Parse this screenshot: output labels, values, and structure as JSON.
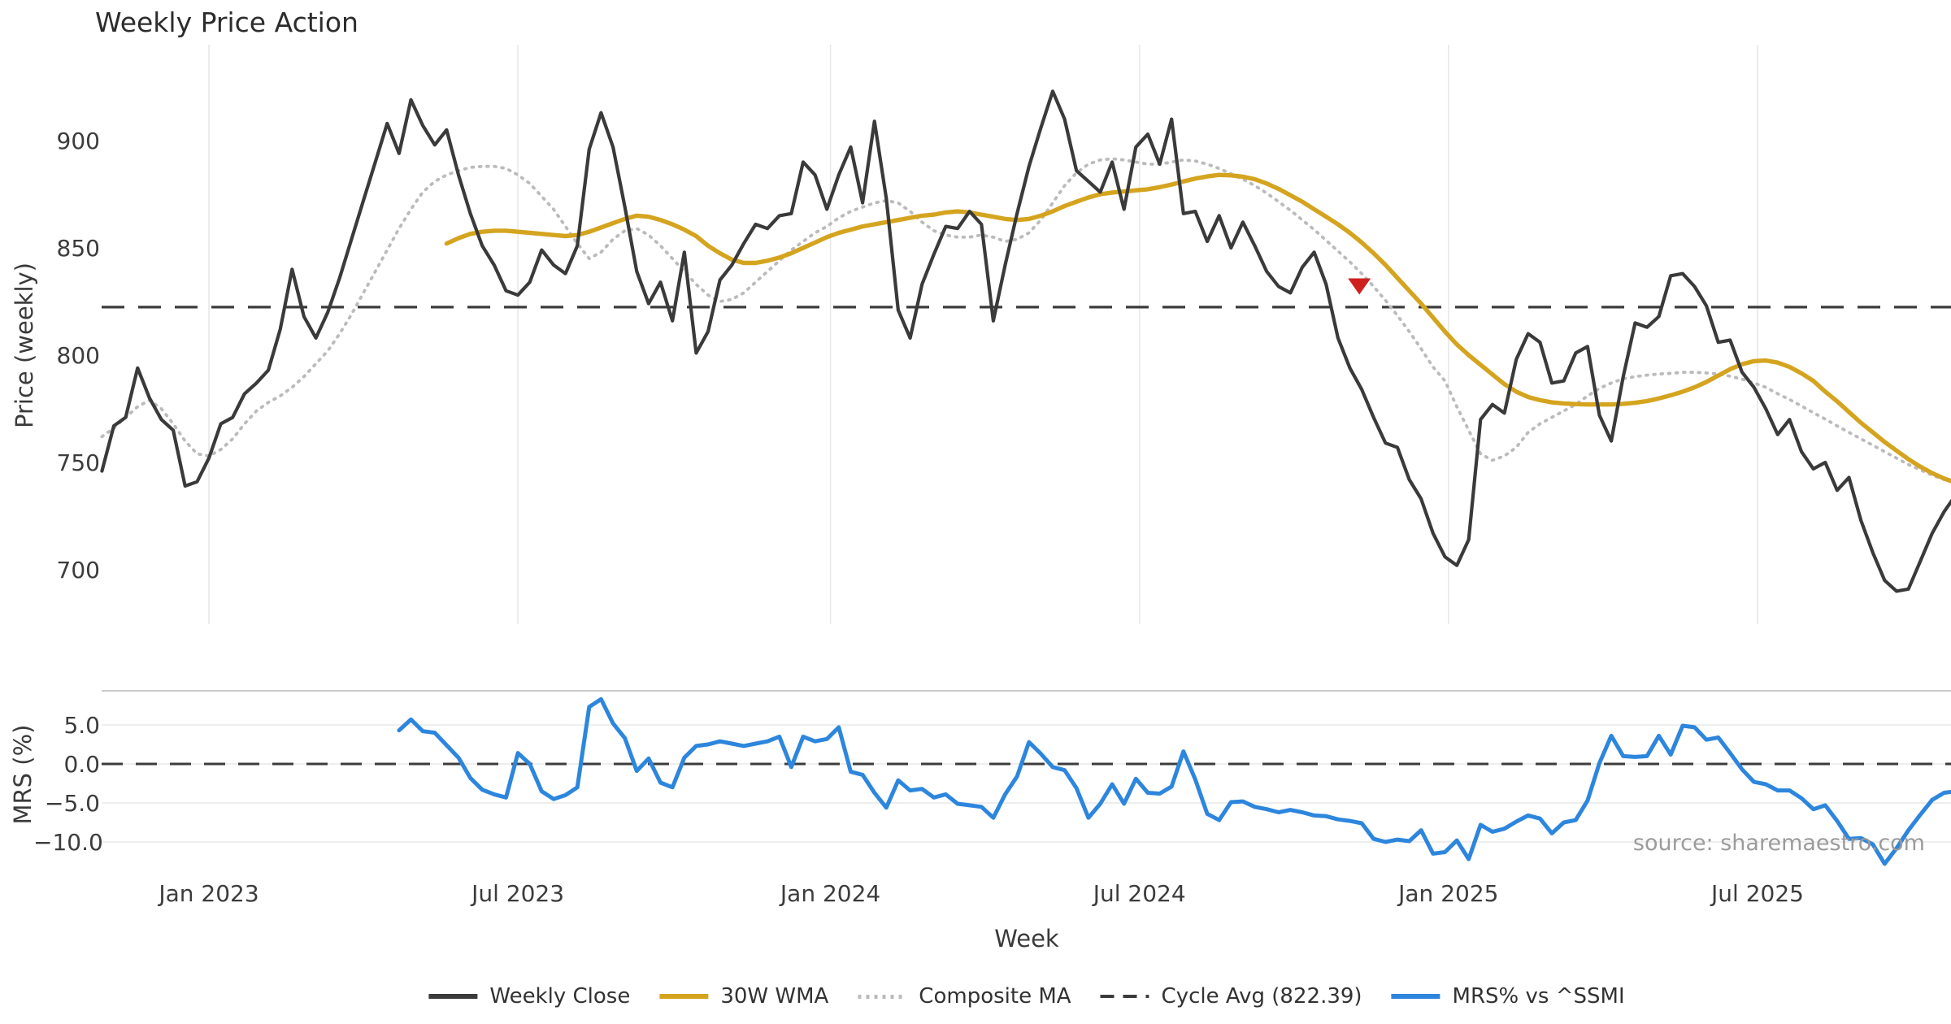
{
  "title": "Weekly Price Action",
  "source": "source: sharemaestro.com",
  "price_panel": {
    "ylabel": "Price (weekly)",
    "yticks": [
      {
        "value": 900,
        "label": "900"
      },
      {
        "value": 850,
        "label": "850"
      },
      {
        "value": 800,
        "label": "800"
      },
      {
        "value": 750,
        "label": "750"
      },
      {
        "value": 700,
        "label": "700"
      }
    ],
    "cycle_avg_value": 822.39
  },
  "mrs_panel": {
    "ylabel": "MRS (%)",
    "yticks": [
      {
        "value": 5,
        "label": "5.0"
      },
      {
        "value": 0,
        "label": "0.0"
      },
      {
        "value": -5,
        "label": "−5.0"
      },
      {
        "value": -10,
        "label": "−10.0"
      }
    ],
    "zero_line_value": 0.0
  },
  "xaxis": {
    "label": "Week",
    "ticks": [
      {
        "week": 9.0,
        "label": "Jan 2023"
      },
      {
        "week": 35.0,
        "label": "Jul 2023"
      },
      {
        "week": 61.3,
        "label": "Jan 2024"
      },
      {
        "week": 87.3,
        "label": "Jul 2024"
      },
      {
        "week": 113.3,
        "label": "Jan 2025"
      },
      {
        "week": 139.3,
        "label": "Jul 2025"
      }
    ]
  },
  "legend": [
    {
      "label": "Weekly Close",
      "color": "#3b3b3b",
      "style": "solid"
    },
    {
      "label": "30W WMA",
      "color": "#d5a41f",
      "style": "solid"
    },
    {
      "label": "Composite MA",
      "color": "#bbbbbb",
      "style": "dotted"
    },
    {
      "label": "Cycle Avg (822.39)",
      "color": "#3c3c3c",
      "style": "dashed"
    },
    {
      "label": "MRS% vs ^SSMI",
      "color": "#2d86dd",
      "style": "solid"
    }
  ],
  "colors": {
    "close": "#3a3a3a",
    "wma": "#d5a41f",
    "composite": "#bbbbbb",
    "dashed": "#3c3c3c",
    "mrs": "#2d86dd",
    "marker": "#cf2020",
    "grid": "#e8e8e8",
    "spine": "#c9c9c9"
  },
  "chart_data": [
    {
      "type": "line",
      "title": "Weekly Price Action",
      "xlabel": "Week",
      "ylabel": "Price (weekly)",
      "ylim": [
        660,
        950
      ],
      "grid": "vertical-only",
      "legend_position": "bottom-center",
      "x_unit": "week_index (week 9 = Jan 2023, ~26 weeks per half year)",
      "cycle_avg": 822.39,
      "annotations": [
        {
          "shape": "triangle-down",
          "week": 105.8,
          "value": 832,
          "color": "#cf2020",
          "meaning": "sell/cross signal"
        }
      ],
      "series": [
        {
          "name": "Weekly Close",
          "color": "#3a3a3a",
          "style": "solid",
          "width": 4.2,
          "start_week": 0,
          "values": [
            746,
            767,
            771,
            794,
            780,
            770,
            765,
            739,
            741,
            752,
            768,
            771,
            782,
            787,
            793,
            812,
            840,
            818,
            808,
            820,
            836,
            854,
            872,
            890,
            908,
            894,
            919,
            907,
            898,
            905,
            884,
            866,
            851,
            842,
            830,
            828,
            834,
            849,
            842,
            838,
            851,
            896,
            913,
            897,
            869,
            839,
            824,
            834,
            816,
            848,
            801,
            811,
            835,
            842,
            852,
            861,
            859,
            865,
            866,
            890,
            884,
            868,
            884,
            897,
            871,
            909,
            873,
            821,
            808,
            833,
            847,
            860,
            859,
            867,
            861,
            816,
            842,
            866,
            888,
            906,
            923,
            910,
            886,
            881,
            876,
            890,
            868,
            897,
            903,
            889,
            910,
            866,
            867,
            853,
            865,
            850,
            862,
            851,
            839,
            832,
            829,
            841,
            848,
            833,
            808,
            794,
            784,
            771,
            759,
            757,
            742,
            733,
            717,
            706,
            702,
            714,
            770,
            777,
            773,
            798,
            810,
            806,
            787,
            788,
            801,
            804,
            772,
            760,
            790,
            815,
            813,
            818,
            837,
            838,
            832,
            823,
            806,
            807,
            792,
            785,
            775,
            763,
            770,
            755,
            747,
            750,
            737,
            743,
            723,
            708,
            695,
            690,
            691,
            704,
            717,
            727,
            735
          ]
        },
        {
          "name": "30W WMA",
          "color": "#d5a41f",
          "style": "solid",
          "width": 5.4,
          "start_week": 29,
          "values": [
            852,
            854.5,
            856.5,
            857.5,
            858,
            858,
            857.5,
            857,
            856.5,
            856,
            855.5,
            856,
            857.5,
            859.5,
            861.5,
            863.5,
            865,
            864.5,
            863,
            861,
            858.5,
            855.5,
            851,
            847.5,
            844.5,
            843,
            843,
            844,
            845.5,
            847.5,
            850,
            852.5,
            855,
            857,
            858.5,
            860,
            861,
            862,
            863,
            864,
            865,
            865.5,
            866.5,
            867,
            866.5,
            865.5,
            864.5,
            863.5,
            863,
            863.5,
            865,
            867,
            869.5,
            871.5,
            873.5,
            875,
            875.8,
            876.3,
            876.8,
            877.3,
            878.3,
            879.5,
            881,
            882.3,
            883.3,
            884,
            883.8,
            883.2,
            882,
            880,
            877.5,
            874.5,
            871.5,
            868,
            864.5,
            861,
            857,
            852.5,
            847.5,
            842,
            836,
            830,
            824,
            817.5,
            811,
            805,
            800,
            795.5,
            791,
            786.5,
            783,
            780.5,
            779,
            778,
            777.5,
            777.2,
            777,
            777,
            777,
            777.3,
            777.8,
            778.6,
            779.8,
            781.3,
            783,
            785,
            787.5,
            790.5,
            793.5,
            795.8,
            797.2,
            797.5,
            796.5,
            794.5,
            791.5,
            788,
            783,
            778.5,
            773.5,
            768.5,
            764,
            759.5,
            755.5,
            751.5,
            748,
            745,
            742.5,
            740.5
          ]
        },
        {
          "name": "Composite MA",
          "color": "#bbbbbb",
          "style": "dotted",
          "width": 3.8,
          "start_week": 0,
          "values": [
            762,
            766,
            771,
            776,
            779,
            775,
            768,
            760,
            754,
            753,
            756,
            761,
            768,
            774,
            778,
            781,
            785,
            790,
            796,
            802,
            810,
            819,
            829,
            839,
            849,
            859,
            868,
            876,
            881,
            884,
            886,
            887.5,
            888,
            888,
            887,
            884,
            880,
            874,
            868,
            860,
            852,
            845,
            848,
            854,
            858,
            859,
            856,
            851,
            845,
            839,
            833,
            828,
            825,
            826,
            829,
            834,
            839,
            844,
            849,
            853,
            857,
            860,
            864,
            867,
            869,
            871,
            872,
            871,
            867,
            862,
            858,
            856,
            855,
            855,
            856,
            855,
            853,
            854,
            857,
            863,
            871,
            879,
            885,
            889,
            891,
            891.5,
            891,
            890,
            889,
            889,
            890,
            891,
            890.5,
            889,
            887,
            884.5,
            882,
            879,
            875.5,
            871.5,
            867.5,
            863,
            858.5,
            853.5,
            848.5,
            843.5,
            838,
            832,
            825.5,
            818.5,
            811,
            803,
            794.5,
            788,
            776,
            765,
            754,
            751,
            753,
            757,
            764,
            768,
            771,
            774,
            777,
            781,
            784.5,
            787,
            789,
            790,
            790.7,
            791.2,
            791.5,
            792,
            792,
            791.7,
            791.2,
            790.2,
            788.8,
            787,
            785,
            782,
            779.3,
            776.3,
            773.2,
            770.2,
            767,
            764,
            761,
            758,
            755,
            752,
            749,
            746.5,
            744,
            742,
            740.5
          ]
        }
      ]
    },
    {
      "type": "line",
      "xlabel": "Week",
      "ylabel": "MRS (%)",
      "ylim": [
        -14,
        9.4
      ],
      "grid": "horizontal-only",
      "zero_line": 0.0,
      "series": [
        {
          "name": "MRS% vs ^SSMI",
          "color": "#2d86dd",
          "style": "solid",
          "width": 5,
          "start_week": 25,
          "values": [
            4.3,
            5.7,
            4.2,
            4.0,
            2.4,
            0.8,
            -1.8,
            -3.3,
            -3.9,
            -4.3,
            1.4,
            0.0,
            -3.5,
            -4.5,
            -4.0,
            -3.0,
            7.3,
            8.3,
            5.2,
            3.3,
            -0.9,
            0.7,
            -2.4,
            -3.0,
            0.8,
            2.3,
            2.5,
            2.9,
            2.6,
            2.3,
            2.6,
            2.9,
            3.5,
            -0.4,
            3.5,
            2.9,
            3.2,
            4.7,
            -1.0,
            -1.4,
            -3.7,
            -5.6,
            -2.1,
            -3.4,
            -3.2,
            -4.3,
            -3.9,
            -5.1,
            -5.3,
            -5.5,
            -6.9,
            -3.9,
            -1.6,
            2.8,
            1.3,
            -0.4,
            -0.8,
            -3.1,
            -6.9,
            -5.1,
            -2.6,
            -5.1,
            -1.9,
            -3.7,
            -3.8,
            -2.9,
            1.6,
            -2.0,
            -6.4,
            -7.2,
            -4.9,
            -4.8,
            -5.5,
            -5.8,
            -6.2,
            -5.9,
            -6.2,
            -6.6,
            -6.7,
            -7.1,
            -7.3,
            -7.6,
            -9.6,
            -10.0,
            -9.7,
            -9.9,
            -8.5,
            -11.5,
            -11.3,
            -9.8,
            -12.2,
            -7.8,
            -8.7,
            -8.3,
            -7.4,
            -6.6,
            -7.0,
            -8.9,
            -7.5,
            -7.2,
            -4.7,
            0.1,
            3.6,
            1.0,
            0.9,
            1.0,
            3.6,
            1.2,
            4.9,
            4.7,
            3.1,
            3.4,
            1.4,
            -0.7,
            -2.3,
            -2.6,
            -3.4,
            -3.4,
            -4.4,
            -5.8,
            -5.3,
            -7.3,
            -9.6,
            -9.5,
            -10.3,
            -12.8,
            -10.8,
            -8.5,
            -6.5,
            -4.6,
            -3.7,
            -3.5
          ]
        }
      ]
    }
  ]
}
